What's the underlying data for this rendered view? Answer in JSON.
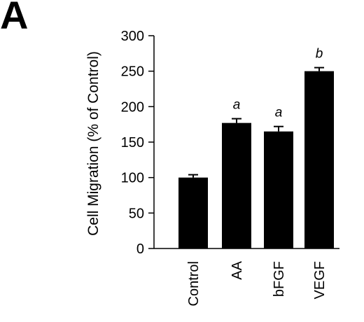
{
  "figure": {
    "panel_letter": "A"
  },
  "chart_data": {
    "type": "bar",
    "categories": [
      "Control",
      "AA",
      "bFGF",
      "VEGF"
    ],
    "values": [
      100,
      177,
      165,
      250
    ],
    "errors": [
      4,
      6,
      7,
      5
    ],
    "annotations": [
      "",
      "a",
      "a",
      "b"
    ],
    "title": "",
    "xlabel": "",
    "ylabel": "Cell Migration (% of Control)",
    "ylim": [
      0,
      300
    ],
    "yticks": [
      0,
      50,
      100,
      150,
      200,
      250,
      300
    ],
    "grid": false,
    "bar_color": "#000000"
  }
}
